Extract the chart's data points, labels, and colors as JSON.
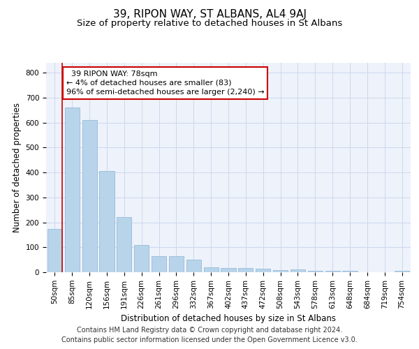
{
  "title": "39, RIPON WAY, ST ALBANS, AL4 9AJ",
  "subtitle": "Size of property relative to detached houses in St Albans",
  "xlabel": "Distribution of detached houses by size in St Albans",
  "ylabel": "Number of detached properties",
  "footer_line1": "Contains HM Land Registry data © Crown copyright and database right 2024.",
  "footer_line2": "Contains public sector information licensed under the Open Government Licence v3.0.",
  "categories": [
    "50sqm",
    "85sqm",
    "120sqm",
    "156sqm",
    "191sqm",
    "226sqm",
    "261sqm",
    "296sqm",
    "332sqm",
    "367sqm",
    "402sqm",
    "437sqm",
    "472sqm",
    "508sqm",
    "543sqm",
    "578sqm",
    "613sqm",
    "648sqm",
    "684sqm",
    "719sqm",
    "754sqm"
  ],
  "values": [
    175,
    660,
    610,
    405,
    220,
    110,
    65,
    65,
    50,
    20,
    18,
    17,
    13,
    8,
    10,
    7,
    7,
    7,
    0,
    0,
    7
  ],
  "bar_color": "#b8d4ea",
  "bar_edge_color": "#8ab4d4",
  "annotation_text": "  39 RIPON WAY: 78sqm  \n← 4% of detached houses are smaller (83)\n96% of semi-detached houses are larger (2,240) →",
  "vline_color": "#cc0000",
  "box_edge_color": "#cc0000",
  "ylim": [
    0,
    840
  ],
  "yticks": [
    0,
    100,
    200,
    300,
    400,
    500,
    600,
    700,
    800
  ],
  "background_color": "#eef2fa",
  "grid_color": "#ccd8ee",
  "title_fontsize": 11,
  "subtitle_fontsize": 9.5,
  "axis_label_fontsize": 8.5,
  "tick_fontsize": 7.5,
  "footer_fontsize": 7,
  "ann_fontsize": 8
}
